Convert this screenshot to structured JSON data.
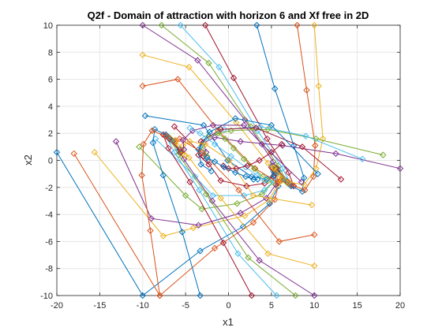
{
  "chart_data": {
    "type": "line",
    "title": "Q2f - Domain of attraction with horizon 6 and Xf free in 2D",
    "xlabel": "x1",
    "ylabel": "x2",
    "xlim": [
      -20,
      20
    ],
    "ylim": [
      -10,
      10
    ],
    "xticks": [
      -20,
      -15,
      -10,
      -5,
      0,
      5,
      10,
      15,
      20
    ],
    "yticks": [
      -10,
      -8,
      -6,
      -4,
      -2,
      0,
      2,
      4,
      6,
      8,
      10
    ],
    "xtick_labels": [
      "-20",
      "-15",
      "-10",
      "-5",
      "0",
      "5",
      "10",
      "15",
      "20"
    ],
    "ytick_labels": [
      "-10",
      "-8",
      "-6",
      "-4",
      "-2",
      "0",
      "2",
      "4",
      "6",
      "8",
      "10"
    ],
    "grid": true,
    "marker": "diamond",
    "colors": [
      "#0072BD",
      "#D95319",
      "#EDB120",
      "#7E2F8E",
      "#77AC30",
      "#4DBEEE",
      "#A2142F"
    ],
    "series": [
      {
        "x": [
          -20,
          -10,
          -3.3,
          1.7,
          4.8,
          5.8,
          5.6
        ],
        "y": [
          0.6,
          -10,
          -6.7,
          -4.9,
          -3.2,
          -1.9,
          -1.0
        ]
      },
      {
        "x": [
          -18,
          -8,
          -1.6,
          2.9,
          5.4,
          5.9,
          5.1
        ],
        "y": [
          0.5,
          -10,
          -6.5,
          -4.6,
          -2.9,
          -1.6,
          -0.6
        ]
      },
      {
        "x": [
          -15.6,
          -7.6,
          -4.1,
          1.9,
          4.8,
          5.7,
          5.6
        ],
        "y": [
          0.6,
          -5.6,
          -5.0,
          -4.1,
          -2.9,
          -1.8,
          -0.9
        ]
      },
      {
        "x": [
          -13.1,
          -9.0,
          -3.5,
          1.4,
          4.4,
          5.5,
          5.5
        ],
        "y": [
          1.4,
          -4.3,
          -4.8,
          -3.9,
          -2.8,
          -1.8,
          -0.9
        ]
      },
      {
        "x": [
          -10.4,
          -5.0,
          -3.1,
          1.0,
          3.9,
          5.2,
          5.3
        ],
        "y": [
          1.0,
          -2.6,
          -3.6,
          -3.2,
          -2.5,
          -1.6,
          -0.9
        ]
      },
      {
        "x": [
          -8.5,
          -3.9,
          -1.8,
          1.8,
          4.2,
          5.3,
          5.2
        ],
        "y": [
          1.6,
          -1.2,
          -2.6,
          -2.6,
          -2.2,
          -1.5,
          -0.8
        ]
      },
      {
        "x": [
          -6.3,
          -2.9,
          -0.9,
          2.1,
          4.2,
          5.2,
          5.0
        ],
        "y": [
          2.5,
          0.3,
          -1.5,
          -1.9,
          -1.7,
          -1.2,
          -0.5
        ]
      },
      {
        "x": [
          -9.7,
          -2.9,
          -0.1,
          2.7,
          4.5,
          5.3,
          5.1
        ],
        "y": [
          3.3,
          2.6,
          0.0,
          -1.2,
          -1.4,
          -1.1,
          -0.4
        ]
      },
      {
        "x": [
          -10,
          -5.9,
          -1.2,
          3.1,
          5.7,
          6.2,
          5.6
        ],
        "y": [
          5.5,
          6.0,
          2.2,
          -0.6,
          -1.6,
          -1.4,
          -0.6
        ]
      },
      {
        "x": [
          -10,
          -4.6,
          0.9,
          4.6,
          6.2,
          6.2,
          5.3
        ],
        "y": [
          7.8,
          6.9,
          2.8,
          -0.2,
          -1.5,
          -1.3,
          -0.5
        ]
      },
      {
        "x": [
          -10,
          -3.6,
          1.9,
          5.2,
          6.6,
          6.5,
          5.6
        ],
        "y": [
          10,
          7.4,
          3.0,
          -0.1,
          -1.5,
          -1.4,
          -0.6
        ]
      },
      {
        "x": [
          -7.8,
          -2.3,
          2.6,
          5.8,
          6.9,
          6.6,
          5.5
        ],
        "y": [
          10,
          7.2,
          2.5,
          -0.4,
          -1.7,
          -1.5,
          -0.6
        ]
      },
      {
        "x": [
          -5.6,
          -1.1,
          3.4,
          6.3,
          7.3,
          6.8,
          5.6
        ],
        "y": [
          10,
          6.9,
          2.2,
          -0.6,
          -1.8,
          -1.5,
          -0.6
        ]
      },
      {
        "x": [
          -2.7,
          0.6,
          4.5,
          7.0,
          7.6,
          6.9,
          5.6
        ],
        "y": [
          10,
          6.1,
          1.6,
          -0.9,
          -1.9,
          -1.6,
          -0.6
        ]
      },
      {
        "x": [
          3.3,
          5.4,
          7.6,
          8.8,
          8.6,
          7.3,
          5.7
        ],
        "y": [
          10,
          5.3,
          1.1,
          -1.3,
          -2.3,
          -1.9,
          -0.8
        ]
      },
      {
        "x": [
          8,
          9.1,
          10.1,
          9.9,
          8.9,
          7.3,
          5.5
        ],
        "y": [
          10,
          5.2,
          1.1,
          -1.2,
          -2.2,
          -1.8,
          -0.7
        ]
      },
      {
        "x": [
          10,
          10.5,
          11.0,
          10.2,
          8.8,
          7.0,
          5.3
        ],
        "y": [
          10,
          5.5,
          1.6,
          -0.6,
          -1.8,
          -1.6,
          -0.6
        ]
      },
      {
        "x": [
          20,
          12.5,
          6.3,
          1.4,
          -1.6,
          -2.9,
          -2.6
        ],
        "y": [
          -0.6,
          0.5,
          1.1,
          1.4,
          1.7,
          1.3,
          0.6
        ]
      },
      {
        "x": [
          18,
          10.2,
          4.6,
          0.3,
          -2.3,
          -3.1,
          -2.5
        ],
        "y": [
          0.4,
          1.6,
          2.3,
          2.2,
          1.8,
          1.1,
          0.3
        ]
      },
      {
        "x": [
          15.6,
          9.0,
          3.7,
          -0.5,
          -2.8,
          -3.3,
          -2.4
        ],
        "y": [
          0.1,
          1.8,
          2.5,
          2.3,
          1.6,
          0.7,
          0.0
        ]
      },
      {
        "x": [
          13.1,
          8.6,
          3.2,
          -0.9,
          -3.2,
          -3.5,
          -2.3
        ],
        "y": [
          -1.4,
          1.0,
          2.4,
          2.3,
          1.4,
          0.4,
          -0.3
        ]
      },
      {
        "x": [
          10.4,
          5.0,
          0.8,
          -2.2,
          -3.5,
          -3.2,
          -2.0
        ],
        "y": [
          -1.0,
          2.6,
          3.1,
          2.1,
          0.8,
          -0.3,
          -0.8
        ]
      },
      {
        "x": [
          10,
          5.9,
          1.2,
          -3.1,
          -5.7,
          -6.2,
          -5.6
        ],
        "y": [
          -5.5,
          -6.0,
          -2.2,
          0.6,
          1.6,
          1.4,
          0.6
        ]
      },
      {
        "x": [
          10,
          4.6,
          -0.9,
          -4.6,
          -6.2,
          -6.2,
          -5.3
        ],
        "y": [
          -7.8,
          -6.9,
          -2.8,
          0.2,
          1.5,
          1.3,
          0.5
        ]
      },
      {
        "x": [
          10,
          3.6,
          -1.9,
          -5.2,
          -6.6,
          -6.5,
          -5.6
        ],
        "y": [
          -10,
          -7.4,
          -3.0,
          0.1,
          1.5,
          1.4,
          0.6
        ]
      },
      {
        "x": [
          7.8,
          2.3,
          -2.6,
          -5.8,
          -6.9,
          -6.6,
          -5.5
        ],
        "y": [
          -10,
          -7.2,
          -2.5,
          0.4,
          1.7,
          1.5,
          0.6
        ]
      },
      {
        "x": [
          5.6,
          1.1,
          -3.4,
          -6.3,
          -7.3,
          -6.8,
          -5.6
        ],
        "y": [
          -10,
          -6.9,
          -2.2,
          0.6,
          1.8,
          1.5,
          0.6
        ]
      },
      {
        "x": [
          2.7,
          -0.6,
          -4.5,
          -7.0,
          -7.6,
          -6.9,
          -5.6
        ],
        "y": [
          -10,
          -6.1,
          -1.6,
          0.9,
          1.9,
          1.6,
          0.6
        ]
      },
      {
        "x": [
          -3.3,
          -5.4,
          -7.6,
          -8.8,
          -8.6,
          -7.3,
          -5.7
        ],
        "y": [
          -10,
          -5.3,
          -1.1,
          1.3,
          2.3,
          1.9,
          0.8
        ]
      },
      {
        "x": [
          -8,
          -9.1,
          -10.1,
          -9.9,
          -8.9,
          -7.3,
          -5.5
        ],
        "y": [
          -10,
          -5.2,
          -1.1,
          1.2,
          2.2,
          1.8,
          0.7
        ]
      },
      {
        "x": [
          9.7,
          2.9,
          0.1,
          -2.7,
          -4.5,
          -5.3,
          -5.1
        ],
        "y": [
          -3.3,
          -2.6,
          0.0,
          1.2,
          1.4,
          1.1,
          0.4
        ]
      },
      {
        "x": [
          8.5,
          3.9,
          1.8,
          -1.8,
          -4.2,
          -5.3,
          -5.2
        ],
        "y": [
          -1.6,
          1.2,
          2.6,
          2.6,
          2.2,
          1.5,
          0.8
        ]
      },
      {
        "x": [
          -1.2,
          -0.4,
          0.6,
          1.8,
          3.0,
          4.0,
          4.6
        ],
        "y": [
          2.0,
          1.6,
          0.9,
          0.1,
          -0.6,
          -1.2,
          -1.5
        ]
      },
      {
        "x": [
          -4.5,
          -3.3,
          -1.6,
          0.3,
          2.0,
          3.3,
          4.2
        ],
        "y": [
          2.4,
          2.0,
          1.2,
          0.3,
          -0.5,
          -1.1,
          -1.5
        ]
      },
      {
        "x": [
          6.2,
          5.0,
          3.6,
          2.2,
          0.9,
          0.0,
          -0.6
        ],
        "y": [
          1.2,
          0.6,
          0.0,
          -0.4,
          -0.6,
          -0.6,
          -0.4
        ]
      },
      {
        "x": [
          -2.5,
          -1.6,
          -0.5,
          0.8,
          2.0,
          2.9,
          3.4
        ],
        "y": [
          0.2,
          -0.1,
          -0.5,
          -0.9,
          -1.2,
          -1.4,
          -1.4
        ]
      }
    ]
  }
}
